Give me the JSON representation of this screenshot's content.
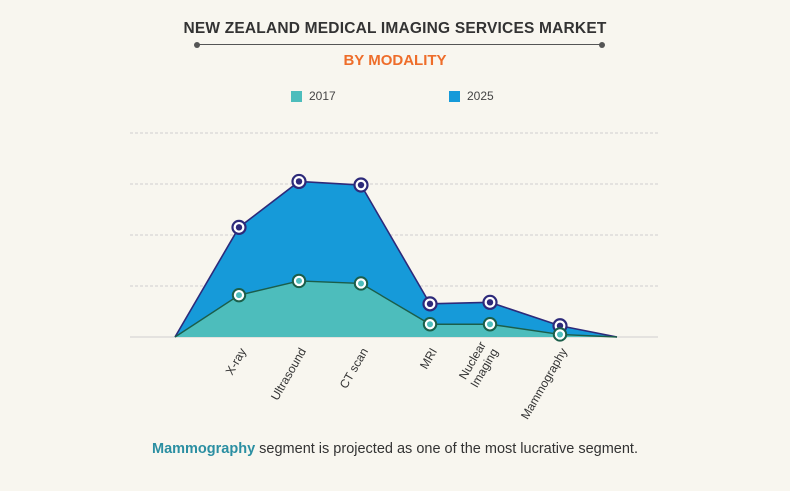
{
  "header": {
    "title": "NEW ZEALAND MEDICAL IMAGING SERVICES MARKET",
    "subtitle": "BY MODALITY"
  },
  "colors": {
    "series_2017": "#4dbdbc",
    "series_2025": "#169ad9",
    "marker_2017_ring": "#1b5e4a",
    "marker_2025_ring": "#2d2a7a",
    "grid": "#cfcfcf",
    "subtitle": "#ee6d2a",
    "highlight": "#2b8fa2"
  },
  "footnote": {
    "highlight": "Mammography",
    "rest": " segment is projected as one of the most lucrative segment."
  },
  "chart_data": {
    "type": "area",
    "categories": [
      "X-ray",
      "Ultrasound",
      "CT scan",
      "MRI",
      "Nuclear Imaging",
      "Mammography"
    ],
    "category_label_lines": [
      [
        "X-ray"
      ],
      [
        "Ultrasound"
      ],
      [
        "CT scan"
      ],
      [
        "MRI"
      ],
      [
        "Nuclear",
        "Imaging"
      ],
      [
        "Mammography"
      ]
    ],
    "series": [
      {
        "name": "2017",
        "values": [
          0.82,
          1.1,
          1.05,
          0.25,
          0.25,
          0.05
        ]
      },
      {
        "name": "2025",
        "values": [
          2.15,
          3.05,
          2.98,
          0.65,
          0.68,
          0.22
        ]
      }
    ],
    "ylim": [
      0,
      4
    ],
    "grid": true,
    "legend_position": "top",
    "y_tick_labels_shown": false
  }
}
